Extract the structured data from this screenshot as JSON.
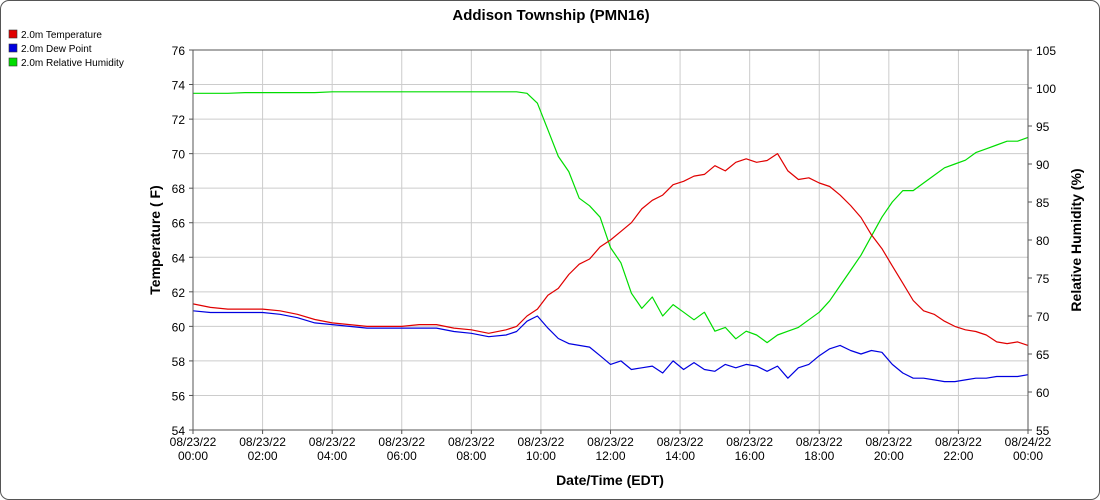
{
  "chart_data": {
    "type": "line",
    "title": "Addison Township (PMN16)",
    "xlabel": "Date/Time (EDT)",
    "ylabel_left": "Temperature ( F)",
    "ylabel_right": "Relative Humidity (%)",
    "ylim_left": [
      54,
      76
    ],
    "ylim_right": [
      55,
      105
    ],
    "yticks_left": [
      54,
      56,
      58,
      60,
      62,
      64,
      66,
      68,
      70,
      72,
      74,
      76
    ],
    "yticks_right": [
      55,
      60,
      65,
      70,
      75,
      80,
      85,
      90,
      95,
      100,
      105
    ],
    "xlim": [
      0,
      24
    ],
    "xticks": [
      {
        "x": 0,
        "date": "08/23/22",
        "time": "00:00"
      },
      {
        "x": 2,
        "date": "08/23/22",
        "time": "02:00"
      },
      {
        "x": 4,
        "date": "08/23/22",
        "time": "04:00"
      },
      {
        "x": 6,
        "date": "08/23/22",
        "time": "06:00"
      },
      {
        "x": 8,
        "date": "08/23/22",
        "time": "08:00"
      },
      {
        "x": 10,
        "date": "08/23/22",
        "time": "10:00"
      },
      {
        "x": 12,
        "date": "08/23/22",
        "time": "12:00"
      },
      {
        "x": 14,
        "date": "08/23/22",
        "time": "14:00"
      },
      {
        "x": 16,
        "date": "08/23/22",
        "time": "16:00"
      },
      {
        "x": 18,
        "date": "08/23/22",
        "time": "18:00"
      },
      {
        "x": 20,
        "date": "08/23/22",
        "time": "20:00"
      },
      {
        "x": 22,
        "date": "08/23/22",
        "time": "22:00"
      },
      {
        "x": 24,
        "date": "08/24/22",
        "time": "00:00"
      }
    ],
    "grid": true,
    "legend_position": "top-left",
    "series": [
      {
        "name": "2.0m Temperature",
        "color": "#e00000",
        "axis": "left",
        "x": [
          0,
          0.5,
          1,
          1.5,
          2,
          2.5,
          3,
          3.5,
          4,
          4.5,
          5,
          5.5,
          6,
          6.5,
          7,
          7.5,
          8,
          8.5,
          9,
          9.3,
          9.6,
          9.9,
          10.2,
          10.5,
          10.8,
          11.1,
          11.4,
          11.7,
          12,
          12.3,
          12.6,
          12.9,
          13.2,
          13.5,
          13.8,
          14.1,
          14.4,
          14.7,
          15,
          15.3,
          15.6,
          15.9,
          16.2,
          16.5,
          16.8,
          17.1,
          17.4,
          17.7,
          18,
          18.3,
          18.6,
          18.9,
          19.2,
          19.5,
          19.8,
          20.1,
          20.4,
          20.7,
          21,
          21.3,
          21.6,
          21.9,
          22.2,
          22.5,
          22.8,
          23.1,
          23.4,
          23.7,
          24
        ],
        "y": [
          61.3,
          61.1,
          61.0,
          61.0,
          61.0,
          60.9,
          60.7,
          60.4,
          60.2,
          60.1,
          60.0,
          60.0,
          60.0,
          60.1,
          60.1,
          59.9,
          59.8,
          59.6,
          59.8,
          60.0,
          60.6,
          61.0,
          61.8,
          62.2,
          63.0,
          63.6,
          63.9,
          64.6,
          65.0,
          65.5,
          66.0,
          66.8,
          67.3,
          67.6,
          68.2,
          68.4,
          68.7,
          68.8,
          69.3,
          69.0,
          69.5,
          69.7,
          69.5,
          69.6,
          70.0,
          69.0,
          68.5,
          68.6,
          68.3,
          68.1,
          67.6,
          67.0,
          66.3,
          65.3,
          64.5,
          63.5,
          62.5,
          61.5,
          60.9,
          60.7,
          60.3,
          60.0,
          59.8,
          59.7,
          59.5,
          59.1,
          59.0,
          59.1,
          58.9
        ]
      },
      {
        "name": "2.0m Dew Point",
        "color": "#0000e0",
        "axis": "left",
        "x": [
          0,
          0.5,
          1,
          1.5,
          2,
          2.5,
          3,
          3.5,
          4,
          4.5,
          5,
          5.5,
          6,
          6.5,
          7,
          7.5,
          8,
          8.5,
          9,
          9.3,
          9.6,
          9.9,
          10.2,
          10.5,
          10.8,
          11.1,
          11.4,
          11.7,
          12,
          12.3,
          12.6,
          12.9,
          13.2,
          13.5,
          13.8,
          14.1,
          14.4,
          14.7,
          15,
          15.3,
          15.6,
          15.9,
          16.2,
          16.5,
          16.8,
          17.1,
          17.4,
          17.7,
          18,
          18.3,
          18.6,
          18.9,
          19.2,
          19.5,
          19.8,
          20.1,
          20.4,
          20.7,
          21,
          21.3,
          21.6,
          21.9,
          22.2,
          22.5,
          22.8,
          23.1,
          23.4,
          23.7,
          24
        ],
        "y": [
          60.9,
          60.8,
          60.8,
          60.8,
          60.8,
          60.7,
          60.5,
          60.2,
          60.1,
          60.0,
          59.9,
          59.9,
          59.9,
          59.9,
          59.9,
          59.7,
          59.6,
          59.4,
          59.5,
          59.7,
          60.3,
          60.6,
          59.9,
          59.3,
          59.0,
          58.9,
          58.8,
          58.3,
          57.8,
          58.0,
          57.5,
          57.6,
          57.7,
          57.3,
          58.0,
          57.5,
          57.9,
          57.5,
          57.4,
          57.8,
          57.6,
          57.8,
          57.7,
          57.4,
          57.7,
          57.0,
          57.6,
          57.8,
          58.3,
          58.7,
          58.9,
          58.6,
          58.4,
          58.6,
          58.5,
          57.8,
          57.3,
          57.0,
          57.0,
          56.9,
          56.8,
          56.8,
          56.9,
          57.0,
          57.0,
          57.1,
          57.1,
          57.1,
          57.2
        ]
      },
      {
        "name": "2.0m Relative Humidity",
        "color": "#00dd00",
        "axis": "right",
        "x": [
          0,
          0.5,
          1,
          1.5,
          2,
          2.5,
          3,
          3.5,
          4,
          4.5,
          5,
          5.5,
          6,
          6.5,
          7,
          7.5,
          8,
          8.5,
          9,
          9.3,
          9.6,
          9.9,
          10.2,
          10.5,
          10.8,
          11.1,
          11.4,
          11.7,
          12,
          12.3,
          12.6,
          12.9,
          13.2,
          13.5,
          13.8,
          14.1,
          14.4,
          14.7,
          15,
          15.3,
          15.6,
          15.9,
          16.2,
          16.5,
          16.8,
          17.1,
          17.4,
          17.7,
          18,
          18.3,
          18.6,
          18.9,
          19.2,
          19.5,
          19.8,
          20.1,
          20.4,
          20.7,
          21,
          21.3,
          21.6,
          21.9,
          22.2,
          22.5,
          22.8,
          23.1,
          23.4,
          23.7,
          24
        ],
        "y": [
          99.3,
          99.3,
          99.3,
          99.4,
          99.4,
          99.4,
          99.4,
          99.4,
          99.5,
          99.5,
          99.5,
          99.5,
          99.5,
          99.5,
          99.5,
          99.5,
          99.5,
          99.5,
          99.5,
          99.5,
          99.3,
          98.0,
          94.5,
          91.0,
          89.0,
          85.5,
          84.5,
          83.0,
          79.0,
          77.0,
          73.0,
          71.0,
          72.5,
          70.0,
          71.5,
          70.5,
          69.5,
          70.5,
          68.0,
          68.5,
          67.0,
          68.0,
          67.5,
          66.5,
          67.5,
          68.0,
          68.5,
          69.5,
          70.5,
          72.0,
          74.0,
          76.0,
          78.0,
          80.5,
          83.0,
          85.0,
          86.5,
          86.5,
          87.5,
          88.5,
          89.5,
          90.0,
          90.5,
          91.5,
          92.0,
          92.5,
          93.0,
          93.0,
          93.5
        ]
      }
    ]
  }
}
